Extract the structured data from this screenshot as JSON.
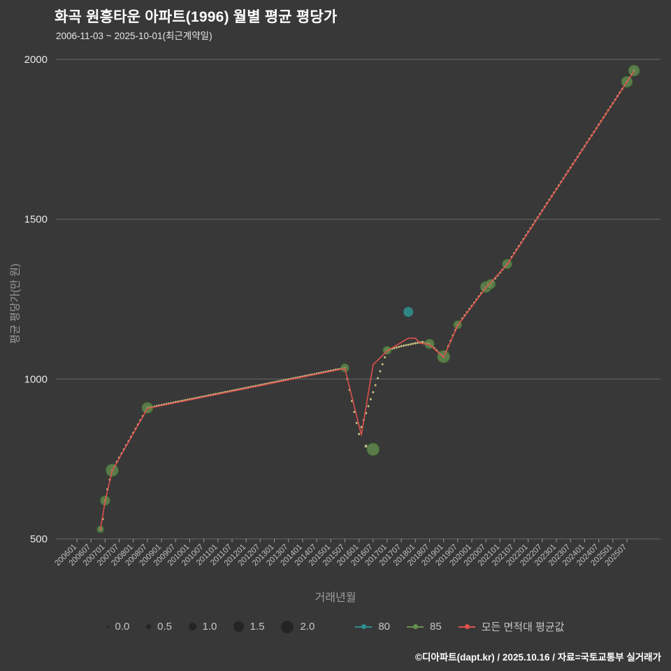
{
  "header": {
    "title": "화곡 원흥타운 아파트(1996) 월별 평균 평당가",
    "subtitle": "2006-11-03 ~ 2025-10-01(최근계약일)"
  },
  "footer": {
    "credit": "©디아파트(dapt.kr) / 2025.10.16 / 자료=국토교통부 실거래가"
  },
  "chart_data": {
    "type": "scatter",
    "title": "화곡 원흥타운 아파트(1996) 월별 평균 평당가",
    "xlabel": "거래년월",
    "ylabel": "평균 평당가(만 원)",
    "ylim": [
      500,
      2000
    ],
    "grid": "horizontal",
    "y_ticks": [
      2000,
      1500,
      1000,
      500
    ],
    "x_ticks": [
      "200601",
      "200607",
      "200701",
      "200707",
      "200801",
      "200807",
      "200901",
      "200907",
      "201001",
      "201007",
      "201101",
      "201107",
      "201201",
      "201207",
      "201301",
      "201307",
      "201401",
      "201407",
      "201501",
      "201507",
      "201601",
      "201607",
      "201701",
      "201707",
      "201801",
      "201807",
      "201901",
      "201907",
      "202001",
      "202007",
      "202101",
      "202107",
      "202201",
      "202207",
      "202301",
      "202307",
      "202401",
      "202407",
      "202501",
      "202507"
    ],
    "series": [
      {
        "name": "80",
        "color": "#2f8f8f",
        "points": [
          [
            "201710",
            1210,
            7
          ]
        ]
      },
      {
        "name": "85",
        "color": "#659150",
        "dot_color": "#ccc385",
        "anchors": [
          [
            "200611",
            530,
            5
          ],
          [
            "200612",
            562,
            2
          ],
          [
            "200701",
            620,
            7
          ],
          [
            "200702",
            655,
            2
          ],
          [
            "200703",
            685,
            2
          ],
          [
            "200704",
            715,
            9
          ],
          [
            "200807",
            910,
            8
          ],
          [
            "201507",
            1035,
            6
          ],
          [
            "201601",
            828,
            2
          ],
          [
            "201701",
            1090,
            6
          ],
          [
            "201707",
            1103,
            3
          ],
          [
            "201801",
            1112,
            2
          ],
          [
            "201804",
            1116,
            2
          ],
          [
            "201807",
            1110,
            7
          ],
          [
            "201901",
            1070,
            9
          ],
          [
            "201907",
            1170,
            6
          ],
          [
            "202007",
            1288,
            8
          ],
          [
            "202009",
            1297,
            7
          ],
          [
            "202104",
            1360,
            7
          ],
          [
            "202507",
            1930,
            8
          ],
          [
            "202510",
            1965,
            8
          ]
        ],
        "extra_points": [
          [
            "201604",
            790,
            2
          ],
          [
            "201607",
            780,
            9
          ]
        ]
      },
      {
        "name": "모든 면적대 평균값",
        "color": "#e0514e",
        "line": true,
        "anchors": [
          [
            "200611",
            528
          ],
          [
            "200701",
            618
          ],
          [
            "200704",
            713
          ],
          [
            "200807",
            908
          ],
          [
            "201507",
            1033
          ],
          [
            "201512",
            885
          ],
          [
            "201602",
            825
          ],
          [
            "201607",
            1045
          ],
          [
            "201701",
            1088
          ],
          [
            "201710",
            1128
          ],
          [
            "201801",
            1128
          ],
          [
            "201803",
            1112
          ],
          [
            "201807",
            1108
          ],
          [
            "201901",
            1068
          ],
          [
            "201907",
            1168
          ],
          [
            "202007",
            1286
          ],
          [
            "202104",
            1358
          ],
          [
            "202510",
            1963
          ]
        ]
      }
    ],
    "legend": {
      "sizes": [
        {
          "label": "0.0",
          "value": 0
        },
        {
          "label": "0.5",
          "value": 0.5
        },
        {
          "label": "1.0",
          "value": 1
        },
        {
          "label": "1.5",
          "value": 1.5
        },
        {
          "label": "2.0",
          "value": 2
        }
      ],
      "series": [
        {
          "label": "80",
          "color": "#2f8f8f"
        },
        {
          "label": "85",
          "color": "#659150"
        },
        {
          "label": "모든 면적대 평균값",
          "color": "#e0514e"
        }
      ]
    }
  }
}
